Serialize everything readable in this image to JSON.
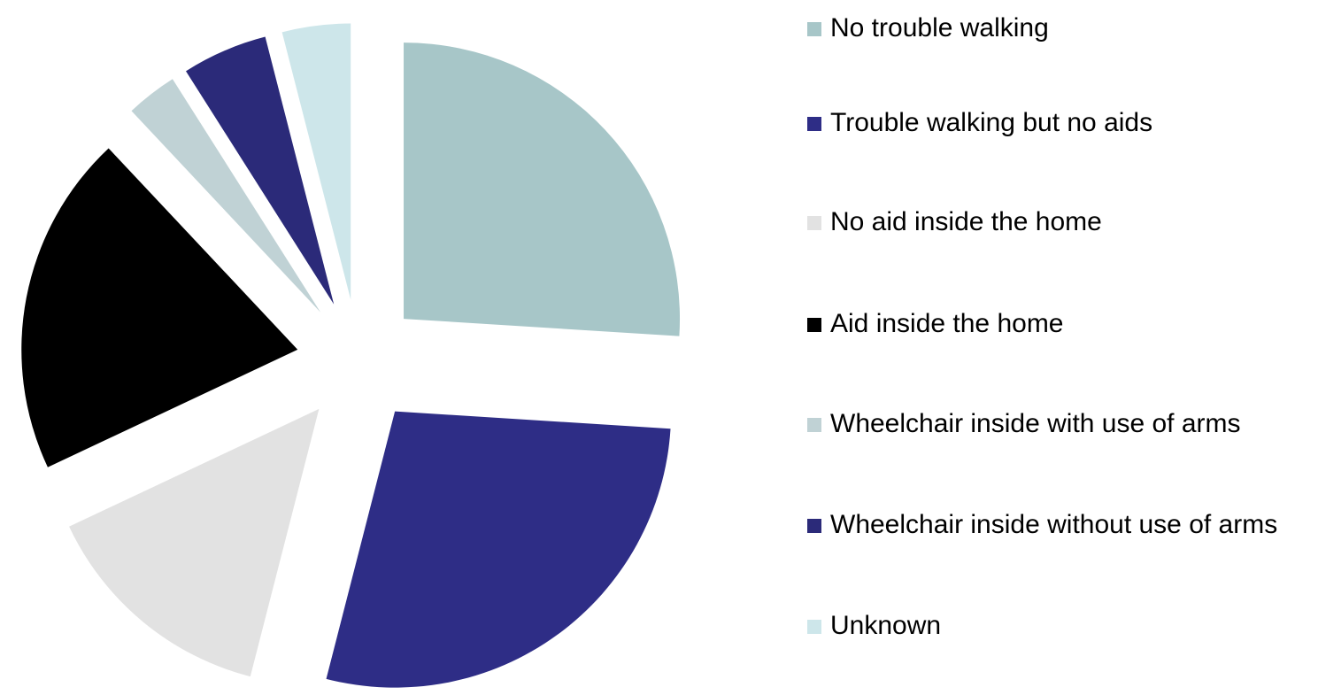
{
  "chart_data": {
    "type": "pie",
    "categories": [
      "No trouble walking",
      "Trouble walking but no aids",
      "No aid inside the home",
      "Aid inside the home",
      "Wheelchair inside with use of arms",
      "Wheelchair inside without use of arms",
      "Unknown"
    ],
    "values": [
      26,
      28,
      14,
      20,
      3,
      5,
      4
    ],
    "colors": [
      "#a7c6c8",
      "#2e2d86",
      "#e2e2e2",
      "#000000",
      "#c0d2d5",
      "#2b2a79",
      "#cde6ea"
    ],
    "legend": "right"
  }
}
